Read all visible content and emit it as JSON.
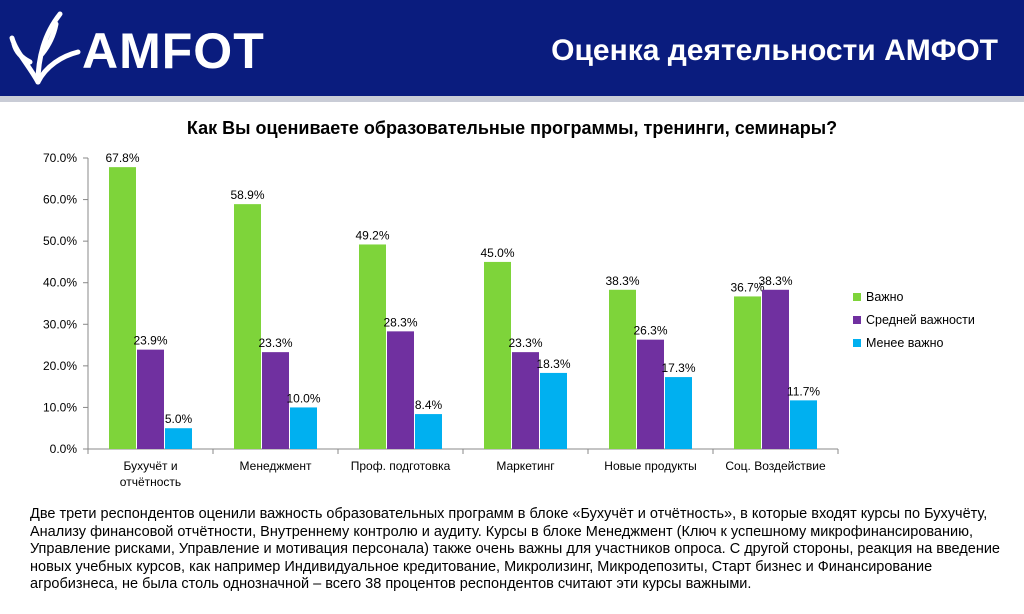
{
  "header": {
    "logo_text": "АМFОТ",
    "title": "Оценка деятельности АМФОТ",
    "bg_color": "#0a1c7e"
  },
  "chart_data": {
    "type": "bar",
    "title": "Как Вы оцениваете образовательные программы, тренинги, семинары?",
    "categories": [
      "Бухучёт и отчётность",
      "Менеджмент",
      "Проф. подготовка",
      "Маркетинг",
      "Новые продукты",
      "Соц. Воздействие"
    ],
    "category_lines": [
      [
        "Бухучёт и",
        "отчётность"
      ],
      [
        "Менеджмент"
      ],
      [
        "Проф. подготовка"
      ],
      [
        "Маркетинг"
      ],
      [
        "Новые продукты"
      ],
      [
        "Соц. Воздействие"
      ]
    ],
    "series": [
      {
        "name": "Важно",
        "color": "#7ed43a",
        "values": [
          67.8,
          58.9,
          49.2,
          45.0,
          38.3,
          36.7
        ]
      },
      {
        "name": "Средней важности",
        "color": "#7030a0",
        "values": [
          23.9,
          23.3,
          28.3,
          23.3,
          26.3,
          38.3
        ]
      },
      {
        "name": "Менее важно",
        "color": "#00b0f0",
        "values": [
          5.0,
          10.0,
          8.4,
          18.3,
          17.3,
          11.7
        ]
      }
    ],
    "ylim": [
      0,
      70
    ],
    "yticks": [
      0,
      10,
      20,
      30,
      40,
      50,
      60,
      70
    ],
    "ytick_labels": [
      "0.0%",
      "10.0%",
      "20.0%",
      "30.0%",
      "40.0%",
      "50.0%",
      "60.0%",
      "70.0%"
    ],
    "value_labels": [
      [
        "67.8%",
        "58.9%",
        "49.2%",
        "45.0%",
        "38.3%",
        "36.7%"
      ],
      [
        "23.9%",
        "23.3%",
        "28.3%",
        "23.3%",
        "26.3%",
        "38.3%"
      ],
      [
        "5.0%",
        "10.0%",
        "8.4%",
        "18.3%",
        "17.3%",
        "11.7%"
      ]
    ],
    "legend_position": "right",
    "grid": false
  },
  "caption": "Две трети респондентов оценили важность образовательных программ в блоке «Бухучёт и отчётность», в которые входят курсы по Бухучёту, Анализу финансовой отчётности, Внутреннему контролю и аудиту. Курсы в блоке Менеджмент (Ключ к успешному микрофинансированию, Управление рисками, Управление и мотивация персонала) также очень важны для участников опроса. С другой стороны, реакция на введение новых учебных курсов, как например Индивидуальное кредитование, Микролизинг, Микродепозиты, Старт бизнес и Финансирование агробизнеса, не была столь однозначной – всего 38 процентов респондентов считают эти курсы важными."
}
